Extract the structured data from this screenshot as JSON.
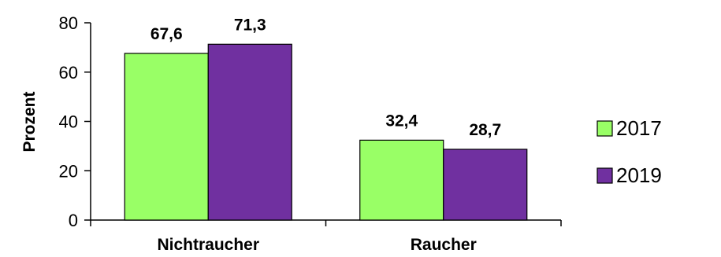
{
  "chart_data": {
    "type": "bar",
    "categories": [
      "Nichtraucher",
      "Raucher"
    ],
    "series": [
      {
        "name": "2017",
        "values": [
          67.6,
          32.4
        ],
        "labels": [
          "67,6",
          "32,4"
        ],
        "color": "#99ff66"
      },
      {
        "name": "2019",
        "values": [
          71.3,
          28.7
        ],
        "labels": [
          "71,3",
          "28,7"
        ],
        "color": "#7030a0"
      }
    ],
    "title": "",
    "xlabel": "",
    "ylabel": "Prozent",
    "ylim": [
      0,
      80
    ],
    "yticks": [
      0,
      20,
      40,
      60,
      80
    ],
    "grid": false,
    "legend_position": "right"
  }
}
